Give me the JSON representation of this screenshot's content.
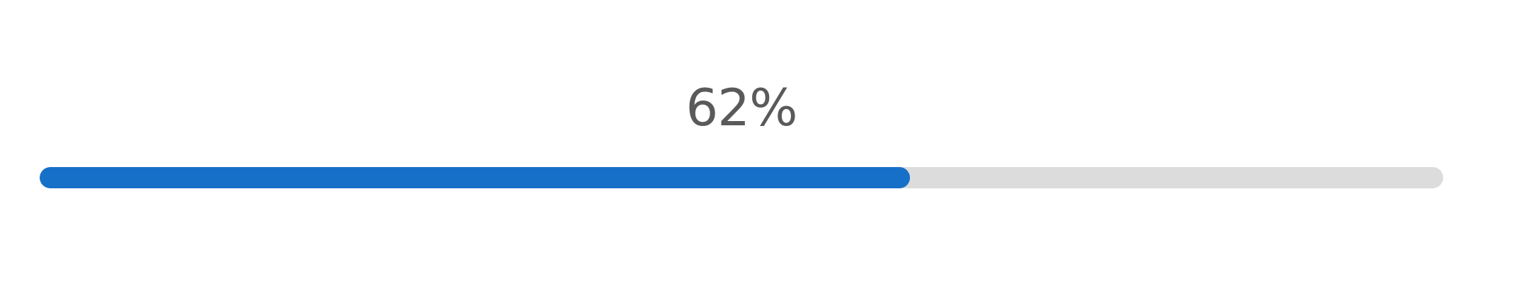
{
  "progress": {
    "label": "62%",
    "value_percent": 62
  },
  "colors": {
    "fill": "#1670c8",
    "track": "#dcdcdc",
    "label_text": "#5a5a5a",
    "background": "#ffffff"
  }
}
